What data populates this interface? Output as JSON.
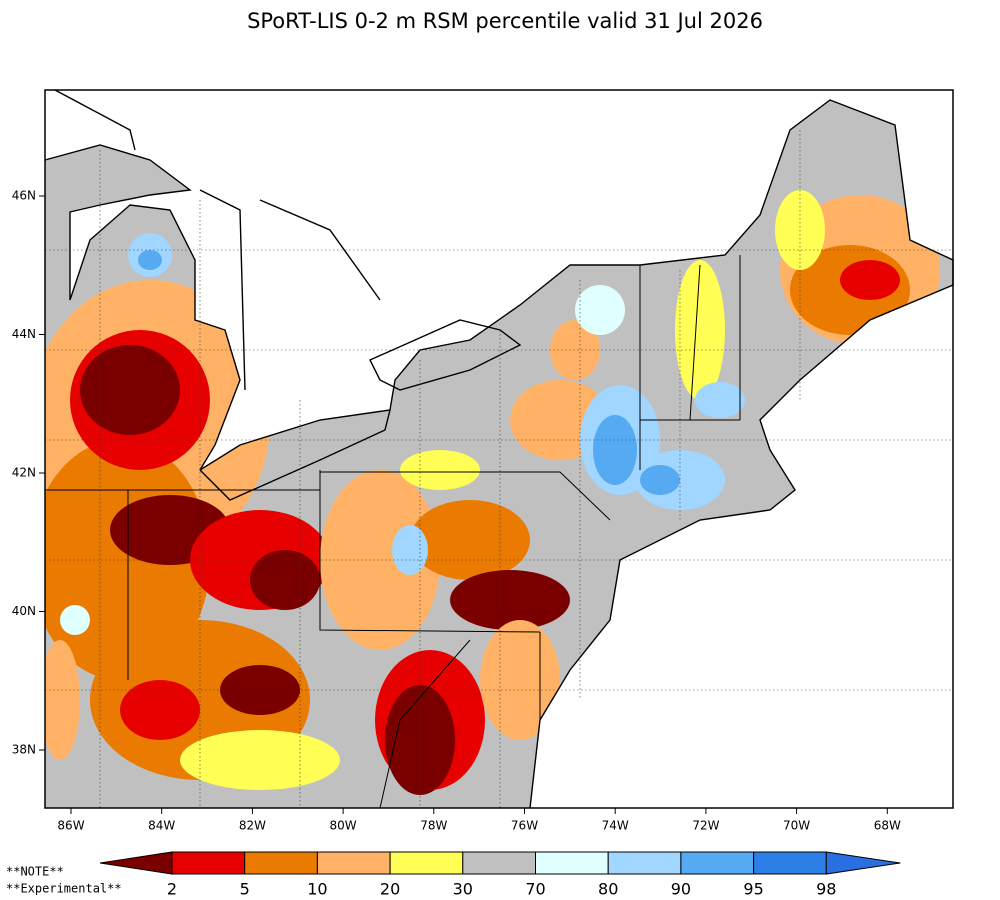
{
  "title": "SPoRT-LIS 0-2 m RSM percentile valid 31 Jul 2026",
  "map": {
    "lon_labels": [
      "86W",
      "84W",
      "82W",
      "80W",
      "78W",
      "76W",
      "74W",
      "72W",
      "70W",
      "68W"
    ],
    "lat_labels": [
      "46N",
      "44N",
      "42N",
      "40N",
      "38N"
    ]
  },
  "colorbar": {
    "labels": [
      "2",
      "5",
      "10",
      "20",
      "30",
      "70",
      "80",
      "90",
      "95",
      "98"
    ],
    "colors": [
      "#7a0000",
      "#e60000",
      "#ea7a00",
      "#ffb265",
      "#ffff55",
      "#c0c0c0",
      "#e0ffff",
      "#a0d6ff",
      "#56aaf2",
      "#2c7fe6",
      "#2a6fe0"
    ]
  },
  "notes": [
    "**NOTE**",
    "**Experimental**"
  ]
}
